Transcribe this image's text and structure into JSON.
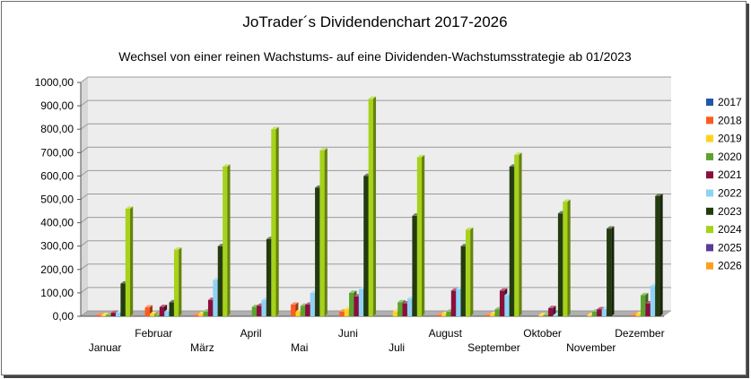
{
  "chart_data": {
    "type": "bar",
    "title": "JoTrader´s Dividendenchart 2017-2026",
    "subtitle": "Wechsel von einer reinen Wachstums- auf eine Dividenden-Wachstumsstrategie ab 01/2023",
    "categories": [
      "Januar",
      "Februar",
      "März",
      "April",
      "Mai",
      "Juni",
      "Juli",
      "August",
      "September",
      "Oktober",
      "November",
      "Dezember"
    ],
    "ylim": [
      0,
      1000
    ],
    "yticks": [
      "0,00",
      "100,00",
      "200,00",
      "300,00",
      "400,00",
      "500,00",
      "600,00",
      "700,00",
      "800,00",
      "900,00",
      "1000,00"
    ],
    "legend_position": "right",
    "series": [
      {
        "name": "2017",
        "color": "#1f5aa8",
        "values": [
          0,
          0,
          0,
          0,
          0,
          0,
          0,
          0,
          0,
          0,
          0,
          0
        ]
      },
      {
        "name": "2018",
        "color": "#ff5a1e",
        "values": [
          5,
          38,
          5,
          0,
          50,
          20,
          0,
          5,
          5,
          0,
          0,
          5
        ]
      },
      {
        "name": "2019",
        "color": "#ffd21e",
        "values": [
          5,
          10,
          10,
          0,
          20,
          30,
          20,
          10,
          10,
          5,
          5,
          10
        ]
      },
      {
        "name": "2020",
        "color": "#5ca32d",
        "values": [
          5,
          5,
          20,
          40,
          45,
          100,
          60,
          20,
          30,
          5,
          20,
          90
        ]
      },
      {
        "name": "2021",
        "color": "#8b0f3c",
        "values": [
          15,
          40,
          70,
          45,
          50,
          85,
          55,
          110,
          110,
          35,
          30,
          55
        ]
      },
      {
        "name": "2022",
        "color": "#8fd2f5",
        "values": [
          15,
          20,
          155,
          70,
          100,
          115,
          75,
          115,
          90,
          5,
          30,
          130
        ]
      },
      {
        "name": "2023",
        "color": "#243b0f",
        "values": [
          140,
          60,
          300,
          330,
          550,
          600,
          430,
          300,
          640,
          440,
          375,
          515
        ]
      },
      {
        "name": "2024",
        "color": "#a6d219",
        "values": [
          460,
          285,
          640,
          800,
          710,
          930,
          680,
          370,
          690,
          490,
          0,
          0
        ]
      },
      {
        "name": "2025",
        "color": "#5a3c96",
        "values": [
          0,
          0,
          0,
          0,
          0,
          0,
          0,
          0,
          0,
          0,
          0,
          0
        ]
      },
      {
        "name": "2026",
        "color": "#ffa01e",
        "values": [
          0,
          0,
          0,
          0,
          0,
          0,
          0,
          0,
          0,
          0,
          0,
          0
        ]
      }
    ]
  }
}
